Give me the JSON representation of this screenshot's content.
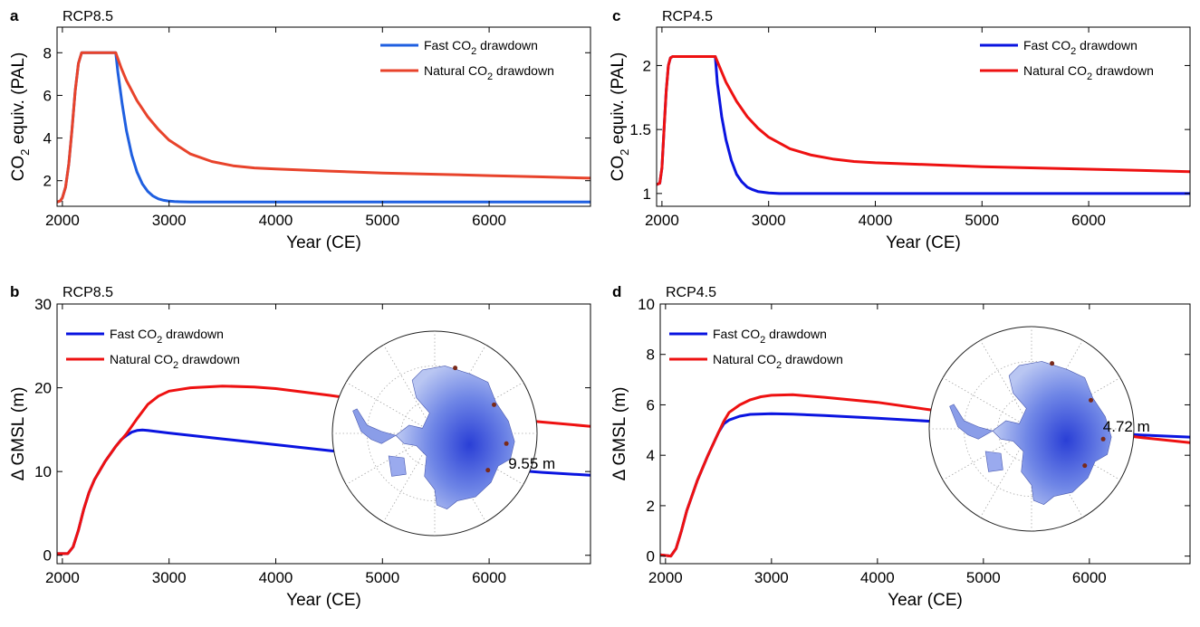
{
  "chart_data": [
    {
      "panel_label": "a",
      "title": "RCP8.5",
      "type": "line",
      "xlabel": "Year (CE)",
      "ylabel_main": "CO",
      "ylabel_sub": "2",
      "ylabel_rest": " equiv. (PAL)",
      "xlim": [
        1950,
        6950
      ],
      "ylim": [
        0.8,
        9.2
      ],
      "xticks": [
        2000,
        3000,
        4000,
        5000,
        6000
      ],
      "xtick_labels": [
        "2000",
        "3000",
        "4000",
        "5000",
        "6000"
      ],
      "yticks": [
        2,
        4,
        6,
        8
      ],
      "ytick_labels": [
        "2",
        "4",
        "6",
        "8"
      ],
      "legend_position": "top-right",
      "series": [
        {
          "name_main": "Fast CO",
          "name_sub": "2",
          "name_rest": " drawdown",
          "color": "#1f5fe0",
          "x": [
            1950,
            1980,
            2000,
            2030,
            2060,
            2090,
            2120,
            2150,
            2180,
            2200,
            2500,
            2520,
            2560,
            2600,
            2650,
            2700,
            2750,
            2800,
            2850,
            2900,
            2950,
            3000,
            3050,
            3100,
            3200,
            3500,
            4000,
            5000,
            6000,
            6950
          ],
          "values": [
            1.0,
            1.05,
            1.2,
            1.7,
            2.8,
            4.4,
            6.2,
            7.5,
            8.0,
            8.0,
            8.0,
            7.1,
            5.6,
            4.35,
            3.2,
            2.4,
            1.85,
            1.5,
            1.28,
            1.15,
            1.08,
            1.04,
            1.02,
            1.01,
            1.0,
            1.0,
            1.0,
            1.0,
            1.0,
            1.0
          ]
        },
        {
          "name_main": "Natural CO",
          "name_sub": "2",
          "name_rest": " drawdown",
          "color": "#e8432b",
          "x": [
            1950,
            1980,
            2000,
            2030,
            2060,
            2090,
            2120,
            2150,
            2180,
            2200,
            2500,
            2550,
            2600,
            2700,
            2800,
            2900,
            3000,
            3200,
            3400,
            3600,
            3800,
            4000,
            4500,
            5000,
            5500,
            6000,
            6500,
            6950
          ],
          "values": [
            1.0,
            1.05,
            1.2,
            1.7,
            2.8,
            4.4,
            6.2,
            7.5,
            8.0,
            8.0,
            8.0,
            7.3,
            6.7,
            5.75,
            5.0,
            4.4,
            3.9,
            3.25,
            2.9,
            2.7,
            2.6,
            2.55,
            2.45,
            2.36,
            2.3,
            2.24,
            2.18,
            2.12
          ]
        }
      ]
    },
    {
      "panel_label": "c",
      "title": "RCP4.5",
      "type": "line",
      "xlabel": "Year (CE)",
      "ylabel_main": "CO",
      "ylabel_sub": "2",
      "ylabel_rest": " equiv. (PAL)",
      "xlim": [
        1950,
        6950
      ],
      "ylim": [
        0.9,
        2.3
      ],
      "xticks": [
        2000,
        3000,
        4000,
        5000,
        6000
      ],
      "xtick_labels": [
        "2000",
        "3000",
        "4000",
        "5000",
        "6000"
      ],
      "yticks": [
        1,
        1.5,
        2
      ],
      "ytick_labels": [
        "1",
        "1.5",
        "2"
      ],
      "legend_position": "top-right",
      "series": [
        {
          "name_main": "Fast CO",
          "name_sub": "2",
          "name_rest": " drawdown",
          "color": "#0a14e0",
          "x": [
            1950,
            1980,
            2000,
            2020,
            2040,
            2060,
            2080,
            2100,
            2500,
            2520,
            2560,
            2600,
            2650,
            2700,
            2750,
            2800,
            2850,
            2900,
            3000,
            3100,
            3200,
            4000,
            5000,
            6000,
            6950
          ],
          "values": [
            1.07,
            1.08,
            1.2,
            1.5,
            1.8,
            2.0,
            2.06,
            2.07,
            2.07,
            1.86,
            1.6,
            1.42,
            1.26,
            1.15,
            1.09,
            1.05,
            1.03,
            1.015,
            1.005,
            1.0,
            1.0,
            1.0,
            1.0,
            1.0,
            1.0
          ]
        },
        {
          "name_main": "Natural CO",
          "name_sub": "2",
          "name_rest": " drawdown",
          "color": "#ee1111",
          "x": [
            1950,
            1980,
            2000,
            2020,
            2040,
            2060,
            2080,
            2100,
            2500,
            2550,
            2600,
            2700,
            2800,
            2900,
            3000,
            3200,
            3400,
            3600,
            3800,
            4000,
            4500,
            5000,
            5500,
            6000,
            6500,
            6950
          ],
          "values": [
            1.07,
            1.08,
            1.2,
            1.5,
            1.8,
            2.0,
            2.06,
            2.07,
            2.07,
            1.97,
            1.87,
            1.72,
            1.6,
            1.51,
            1.44,
            1.35,
            1.3,
            1.27,
            1.25,
            1.24,
            1.225,
            1.21,
            1.2,
            1.19,
            1.18,
            1.17
          ]
        }
      ]
    },
    {
      "panel_label": "b",
      "title": "RCP8.5",
      "type": "line",
      "xlabel": "Year (CE)",
      "ylabel_main": "Δ GMSL (m)",
      "xlim": [
        1950,
        6950
      ],
      "ylim": [
        -1,
        30
      ],
      "xticks": [
        2000,
        3000,
        4000,
        5000,
        6000
      ],
      "xtick_labels": [
        "2000",
        "3000",
        "4000",
        "5000",
        "6000"
      ],
      "yticks": [
        0,
        10,
        20,
        30
      ],
      "ytick_labels": [
        "0",
        "10",
        "20",
        "30"
      ],
      "legend_position": "top-left",
      "annotation": "9.55 m",
      "annotation_x": 6400,
      "annotation_y": 11.0,
      "inset": "antarctica-map",
      "series": [
        {
          "name_main": "Fast CO",
          "name_sub": "2",
          "name_rest": " drawdown",
          "color": "#0a14e0",
          "x": [
            1950,
            2050,
            2100,
            2150,
            2200,
            2250,
            2300,
            2400,
            2500,
            2550,
            2600,
            2650,
            2700,
            2750,
            2800,
            3000,
            3500,
            4000,
            4500,
            5000,
            5500,
            6000,
            6500,
            6950
          ],
          "values": [
            0.2,
            0.2,
            1.0,
            3.0,
            5.5,
            7.5,
            9.0,
            11.2,
            13.0,
            13.8,
            14.3,
            14.7,
            14.9,
            14.95,
            14.9,
            14.6,
            13.9,
            13.2,
            12.5,
            11.8,
            11.1,
            10.4,
            9.9,
            9.55
          ]
        },
        {
          "name_main": "Natural CO",
          "name_sub": "2",
          "name_rest": " drawdown",
          "color": "#ee1111",
          "x": [
            1950,
            2050,
            2100,
            2150,
            2200,
            2250,
            2300,
            2400,
            2500,
            2600,
            2700,
            2800,
            2900,
            3000,
            3200,
            3500,
            3800,
            4000,
            4500,
            5000,
            5500,
            6000,
            6500,
            6950
          ],
          "values": [
            0.2,
            0.2,
            1.0,
            3.0,
            5.5,
            7.5,
            9.0,
            11.2,
            13.0,
            14.5,
            16.3,
            18.0,
            19.0,
            19.6,
            20.0,
            20.2,
            20.1,
            19.9,
            19.1,
            18.2,
            17.3,
            16.5,
            15.9,
            15.4
          ]
        }
      ]
    },
    {
      "panel_label": "d",
      "title": "RCP4.5",
      "type": "line",
      "xlabel": "Year (CE)",
      "ylabel_main": "Δ GMSL (m)",
      "xlim": [
        1950,
        6950
      ],
      "ylim": [
        -0.3,
        10
      ],
      "xticks": [
        2000,
        3000,
        4000,
        5000,
        6000
      ],
      "xtick_labels": [
        "2000",
        "3000",
        "4000",
        "5000",
        "6000"
      ],
      "yticks": [
        0,
        2,
        4,
        6,
        8,
        10
      ],
      "ytick_labels": [
        "0",
        "2",
        "4",
        "6",
        "8",
        "10"
      ],
      "legend_position": "top-left",
      "annotation": "4.72 m",
      "annotation_x": 6350,
      "annotation_y": 5.15,
      "inset": "antarctica-map",
      "series": [
        {
          "name_main": "Fast CO",
          "name_sub": "2",
          "name_rest": " drawdown",
          "color": "#0a14e0",
          "x": [
            1950,
            2050,
            2100,
            2150,
            2200,
            2300,
            2400,
            2500,
            2550,
            2600,
            2700,
            2800,
            3000,
            3200,
            3500,
            4000,
            4500,
            5000,
            5500,
            6000,
            6500,
            6950
          ],
          "values": [
            0.05,
            0.0,
            0.3,
            1.0,
            1.8,
            3.0,
            4.0,
            4.9,
            5.25,
            5.4,
            5.55,
            5.62,
            5.65,
            5.63,
            5.58,
            5.47,
            5.35,
            5.2,
            5.05,
            4.92,
            4.8,
            4.72
          ]
        },
        {
          "name_main": "Natural CO",
          "name_sub": "2",
          "name_rest": " drawdown",
          "color": "#ee1111",
          "x": [
            1950,
            2050,
            2100,
            2150,
            2200,
            2300,
            2400,
            2500,
            2550,
            2600,
            2700,
            2800,
            2900,
            3000,
            3200,
            3500,
            4000,
            4500,
            5000,
            5500,
            6000,
            6500,
            6950
          ],
          "values": [
            0.05,
            0.0,
            0.3,
            1.0,
            1.8,
            3.0,
            4.0,
            4.9,
            5.35,
            5.7,
            6.0,
            6.2,
            6.32,
            6.38,
            6.4,
            6.3,
            6.1,
            5.8,
            5.5,
            5.2,
            4.95,
            4.7,
            4.5
          ]
        }
      ]
    }
  ]
}
